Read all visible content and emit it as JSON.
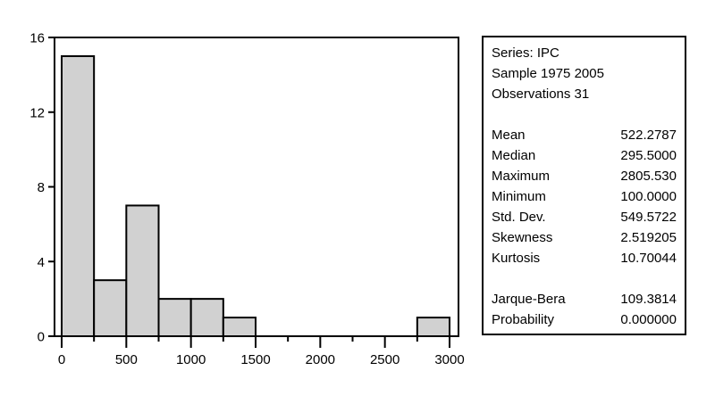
{
  "figure": {
    "background": "#ffffff",
    "text_color": "#000000"
  },
  "chart_data": {
    "type": "histogram",
    "title": "",
    "xlabel": "",
    "ylabel": "",
    "bin_start": 0,
    "bin_width": 250,
    "counts": [
      15,
      3,
      7,
      2,
      2,
      1,
      0,
      0,
      0,
      0,
      0,
      1
    ],
    "total_observations": 31,
    "x_ticks": [
      0,
      500,
      1000,
      1500,
      2000,
      2500,
      3000
    ],
    "x_tick_labels": [
      "0",
      "500",
      "1000",
      "1500",
      "2000",
      "2500",
      "3000"
    ],
    "x_minor_tick_step": 250,
    "y_ticks": [
      0,
      4,
      8,
      12,
      16
    ],
    "y_tick_labels": [
      "0",
      "4",
      "8",
      "12",
      "16"
    ],
    "xlim": [
      0,
      3000
    ],
    "ylim": [
      0,
      16
    ],
    "grid": false,
    "bar_fill": "#d1d1d1",
    "bar_stroke": "#000000",
    "axis_color": "#000000"
  },
  "stats_panel": {
    "header_lines": [
      "Series: IPC",
      "Sample 1975 2005",
      "Observations 31"
    ],
    "stat_rows": [
      {
        "label": "Mean",
        "value": "522.2787"
      },
      {
        "label": "Median",
        "value": "295.5000"
      },
      {
        "label": "Maximum",
        "value": "2805.530"
      },
      {
        "label": "Minimum",
        "value": "100.0000"
      },
      {
        "label": "Std. Dev.",
        "value": "549.5722"
      },
      {
        "label": "Skewness",
        "value": "2.519205"
      },
      {
        "label": "Kurtosis",
        "value": "10.70044"
      }
    ],
    "test_rows": [
      {
        "label": "Jarque-Bera",
        "value": "109.3814"
      },
      {
        "label": "Probability",
        "value": "0.000000"
      }
    ]
  }
}
